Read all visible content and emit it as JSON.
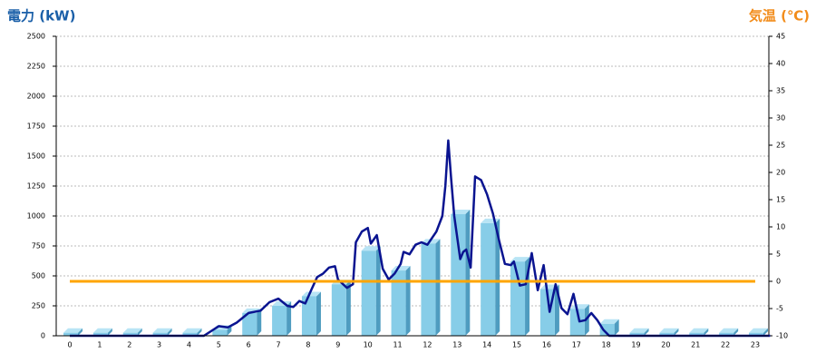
{
  "chart_data": {
    "type": "bar",
    "ylabel": "電力 (kW)",
    "y2label": "気温 (℃)",
    "ylabel_color": "#1a5fa8",
    "y2label_color": "#f28c1a",
    "categories": [
      0,
      1,
      2,
      3,
      4,
      5,
      6,
      7,
      8,
      9,
      10,
      11,
      12,
      13,
      14,
      15,
      16,
      17,
      18,
      19,
      20,
      21,
      22,
      23
    ],
    "ylim": [
      0,
      2500
    ],
    "yticks": [
      0,
      250,
      500,
      750,
      1000,
      1250,
      1500,
      1750,
      2000,
      2250,
      2500
    ],
    "y2lim": [
      -10,
      45
    ],
    "y2ticks": [
      -10,
      -5,
      0,
      5,
      10,
      15,
      20,
      25,
      30,
      35,
      40,
      45
    ],
    "grid": true,
    "series": [
      {
        "type": "bar",
        "color": "#87cde8",
        "side_color": "#4f9cc0",
        "values": [
          25,
          25,
          25,
          25,
          25,
          50,
          190,
          250,
          330,
          430,
          710,
          545,
          770,
          1015,
          940,
          620,
          390,
          225,
          100,
          25,
          25,
          25,
          25,
          25
        ]
      },
      {
        "type": "line",
        "color": "#0a1490",
        "x": [
          0,
          4.5,
          5,
          5.3,
          5.6,
          6,
          6.4,
          6.7,
          7,
          7.3,
          7.5,
          7.7,
          7.9,
          8.1,
          8.3,
          8.5,
          8.7,
          8.9,
          9,
          9.3,
          9.5,
          9.6,
          9.8,
          10,
          10.1,
          10.3,
          10.5,
          10.7,
          10.9,
          11.1,
          11.2,
          11.4,
          11.6,
          11.8,
          12,
          12.3,
          12.5,
          12.6,
          12.7,
          12.8,
          12.9,
          13.1,
          13.2,
          13.3,
          13.45,
          13.6,
          13.8,
          14,
          14.2,
          14.4,
          14.6,
          14.8,
          14.9,
          15.1,
          15.3,
          15.5,
          15.7,
          15.9,
          16.1,
          16.3,
          16.5,
          16.7,
          16.9,
          17.1,
          17.3,
          17.5,
          17.7,
          17.9,
          18.1,
          23.5
        ],
        "values": [
          0,
          0,
          80,
          70,
          110,
          190,
          210,
          280,
          310,
          250,
          240,
          290,
          270,
          380,
          490,
          520,
          570,
          580,
          470,
          400,
          430,
          780,
          870,
          900,
          770,
          840,
          560,
          470,
          520,
          600,
          700,
          680,
          760,
          780,
          760,
          870,
          1000,
          1250,
          1630,
          1300,
          1000,
          640,
          700,
          720,
          570,
          1330,
          1300,
          1180,
          1020,
          800,
          600,
          590,
          620,
          420,
          430,
          690,
          380,
          590,
          200,
          430,
          230,
          180,
          350,
          120,
          130,
          190,
          130,
          50,
          0,
          0
        ]
      },
      {
        "type": "line",
        "axis": "y2",
        "color": "#ffa500",
        "values": [
          0,
          0,
          0,
          0,
          0,
          0,
          0,
          0,
          0,
          0,
          0,
          0,
          0,
          0,
          0,
          0,
          0,
          0,
          0,
          0,
          0,
          0,
          0,
          0
        ]
      }
    ]
  }
}
